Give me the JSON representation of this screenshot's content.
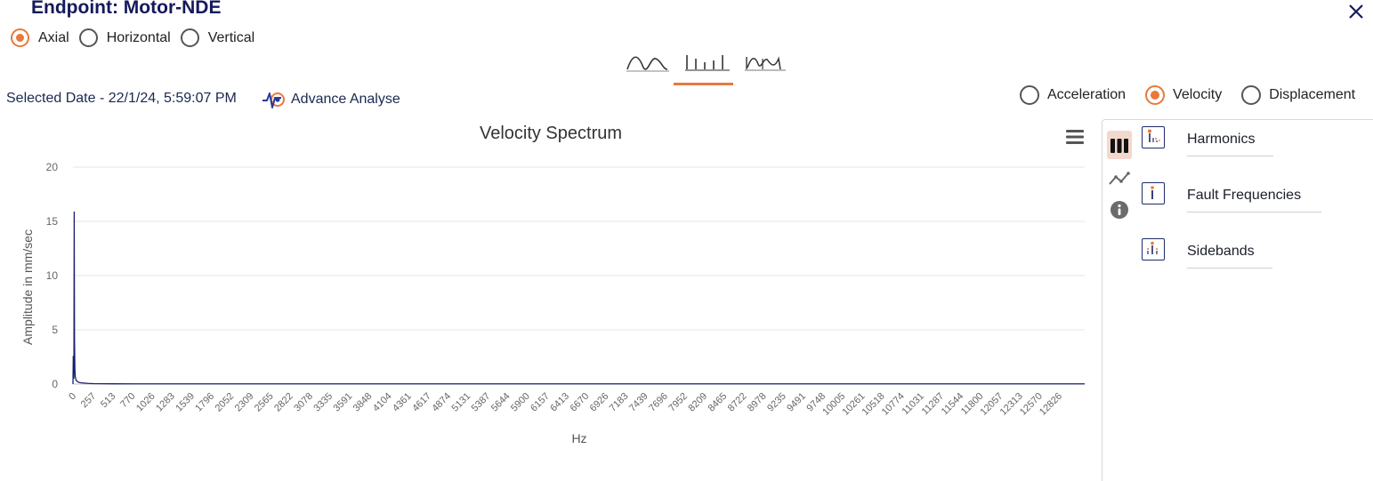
{
  "header": {
    "title": "Endpoint: Motor-NDE",
    "close_icon": "close-icon"
  },
  "axis_options": [
    {
      "label": "Axial",
      "checked": true
    },
    {
      "label": "Horizontal",
      "checked": false
    },
    {
      "label": "Vertical",
      "checked": false
    }
  ],
  "chart_tabs": [
    {
      "name": "waveform-tab",
      "icon": "smooth-wave-icon",
      "active": false
    },
    {
      "name": "spectrum-tab",
      "icon": "bar-spectrum-icon",
      "active": true
    },
    {
      "name": "combined-tab",
      "icon": "mixed-wave-icon",
      "active": false
    }
  ],
  "selected_date": "Selected Date - 22/1/24, 5:59:07 PM",
  "advance_analyse": "Advance Analyse",
  "unit_options": [
    {
      "label": "Acceleration",
      "checked": false
    },
    {
      "label": "Velocity",
      "checked": true
    },
    {
      "label": "Displacement",
      "checked": false
    }
  ],
  "side_panel": {
    "tools": [
      {
        "label": "Harmonics",
        "icon": "harmonics-icon"
      },
      {
        "label": "Fault Frequencies",
        "icon": "fault-frequencies-icon"
      },
      {
        "label": "Sidebands",
        "icon": "sidebands-icon"
      }
    ]
  },
  "colors": {
    "accent": "#e8793a",
    "title": "#14195c",
    "series": "#1a1f6e"
  },
  "chart_data": {
    "type": "line",
    "title": "Velocity Spectrum",
    "xlabel": "Hz",
    "ylabel": "Amplitude in mm/sec",
    "ylim": [
      0,
      20
    ],
    "yticks": [
      0,
      5,
      10,
      15,
      20
    ],
    "xlim": [
      0,
      13000
    ],
    "xticks": [
      "0",
      "257",
      "513",
      "770",
      "1026",
      "1283",
      "1539",
      "1796",
      "2052",
      "2309",
      "2565",
      "2822",
      "3078",
      "3335",
      "3591",
      "3848",
      "4104",
      "4361",
      "4617",
      "4874",
      "5131",
      "5387",
      "5644",
      "5900",
      "6157",
      "6413",
      "6670",
      "6926",
      "7183",
      "7439",
      "7696",
      "7952",
      "8209",
      "8465",
      "8722",
      "8978",
      "9235",
      "9491",
      "9748",
      "10005",
      "10261",
      "10518",
      "10774",
      "11031",
      "11287",
      "11544",
      "11800",
      "12057",
      "12313",
      "12570",
      "12826"
    ],
    "series": [
      {
        "x": [
          0,
          4,
          8,
          12,
          16,
          20,
          25,
          30,
          35,
          40,
          50,
          60,
          70,
          80,
          100,
          130,
          160,
          200,
          260,
          400,
          800,
          2000,
          5000,
          9000,
          13000
        ],
        "y": [
          0,
          2.6,
          1.2,
          0.5,
          15.9,
          4.0,
          1.3,
          0.7,
          0.5,
          0.35,
          0.3,
          0.22,
          0.18,
          0.15,
          0.12,
          0.1,
          0.08,
          0.06,
          0.04,
          0.03,
          0.02,
          0.02,
          0.02,
          0.02,
          0.02
        ]
      }
    ],
    "grid": true,
    "legend": "none"
  }
}
